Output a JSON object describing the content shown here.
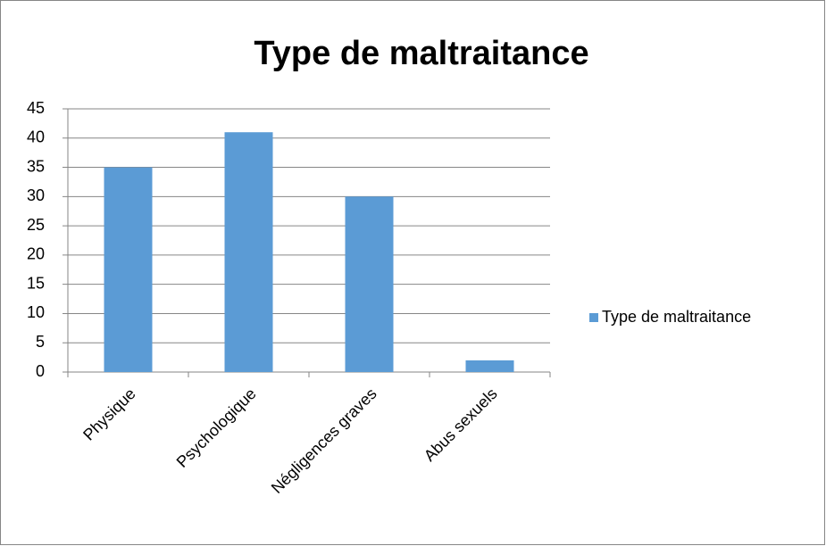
{
  "chart_data": {
    "type": "bar",
    "title": "Type de maltraitance",
    "categories": [
      "Physique",
      "Psychologique",
      "Négligences graves",
      "Abus sexuels"
    ],
    "series": [
      {
        "name": "Type de maltraitance",
        "color": "#5b9bd5",
        "values": [
          35,
          41,
          30,
          2
        ]
      }
    ],
    "ylim": [
      0,
      45
    ],
    "yticks": [
      0,
      5,
      10,
      15,
      20,
      25,
      30,
      35,
      40,
      45
    ],
    "grid": true,
    "legend": "right"
  }
}
